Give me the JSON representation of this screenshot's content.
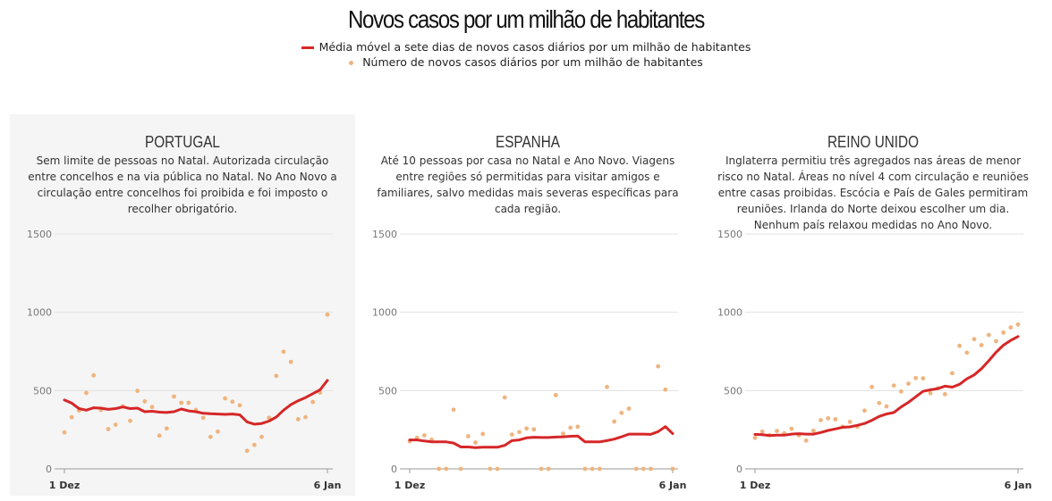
{
  "title": "Novos casos por um milhão de habitantes",
  "legend": {
    "line": "Média móvel a sete dias de novos casos diários por um milhão de habitantes",
    "dots": "Número de novos casos diários por um milhão de habitantes"
  },
  "colors": {
    "line": "#d62728",
    "dots": "#efb47e",
    "panel_highlight": "#f5f5f5"
  },
  "chart_data": [
    {
      "type": "line",
      "title": "PORTUGAL",
      "subtitle": "Sem limite de pessoas no Natal. Autorizada circulação entre concelhos e na via pública no Natal. No Ano Novo a circulação entre concelhos foi proibida e foi imposto o recolher obrigatório.",
      "x_ticks": [
        "1 Dez",
        "6 Jan"
      ],
      "y_ticks": [
        0,
        500,
        1000,
        1500
      ],
      "ylim": [
        0,
        1500
      ],
      "grid": true,
      "series": [
        {
          "name": "Média móvel a sete dias de novos casos diários por um milhão de habitantes",
          "kind": "line",
          "values": [
            440,
            420,
            385,
            375,
            390,
            388,
            380,
            385,
            395,
            385,
            388,
            365,
            368,
            362,
            360,
            365,
            382,
            370,
            365,
            355,
            352,
            350,
            348,
            350,
            345,
            300,
            285,
            290,
            305,
            330,
            375,
            410,
            435,
            455,
            480,
            505,
            565
          ]
        },
        {
          "name": "Número de novos casos diários por um milhão de habitantes",
          "kind": "scatter",
          "values": [
            233,
            330,
            372,
            485,
            597,
            376,
            254,
            282,
            400,
            307,
            498,
            431,
            395,
            212,
            258,
            462,
            422,
            422,
            376,
            326,
            204,
            238,
            450,
            429,
            406,
            115,
            153,
            204,
            326,
            594,
            748,
            683,
            317,
            330,
            427,
            487,
            985
          ]
        }
      ]
    },
    {
      "type": "line",
      "title": "ESPANHA",
      "subtitle": "Até 10 pessoas por casa no Natal e Ano Novo. Viagens entre regiões só permitidas para visitar amigos e familiares, salvo medidas mais severas específicas para cada região.",
      "x_ticks": [
        "1 Dez",
        "6 Jan"
      ],
      "y_ticks": [
        0,
        500,
        1000,
        1500
      ],
      "ylim": [
        0,
        1500
      ],
      "grid": true,
      "series": [
        {
          "name": "Média móvel a sete dias de novos casos diários por um milhão de habitantes",
          "kind": "line",
          "values": [
            185,
            185,
            178,
            172,
            172,
            172,
            165,
            140,
            140,
            135,
            138,
            138,
            138,
            150,
            180,
            185,
            198,
            202,
            200,
            200,
            203,
            205,
            208,
            210,
            172,
            172,
            172,
            180,
            190,
            205,
            222,
            222,
            222,
            220,
            238,
            270,
            225
          ]
        },
        {
          "name": "Número de novos casos diários por um milhão de habitantes",
          "kind": "scatter",
          "values": [
            176,
            198,
            214,
            187,
            0,
            0,
            378,
            0,
            208,
            168,
            223,
            0,
            0,
            456,
            219,
            235,
            258,
            252,
            0,
            0,
            471,
            225,
            263,
            269,
            0,
            0,
            0,
            523,
            302,
            357,
            385,
            0,
            0,
            0,
            655,
            506,
            0
          ]
        }
      ]
    },
    {
      "type": "line",
      "title": "REINO UNIDO",
      "subtitle": "Inglaterra permitiu três agregados nas áreas de menor risco no Natal. Áreas no nível 4 com circulação e reuniões entre casas proibidas. Escócia e País de Gales permitiram reuniões. Irlanda do Norte deixou escolher um dia. Nenhum país relaxou medidas no Ano Novo.",
      "x_ticks": [
        "1 Dez",
        "6 Jan"
      ],
      "y_ticks": [
        0,
        500,
        1000,
        1500
      ],
      "ylim": [
        0,
        1500
      ],
      "grid": true,
      "series": [
        {
          "name": "Média móvel a sete dias de novos casos diários por um milhão de habitantes",
          "kind": "line",
          "values": [
            220,
            218,
            213,
            215,
            215,
            222,
            225,
            222,
            222,
            232,
            245,
            255,
            265,
            268,
            278,
            290,
            310,
            335,
            350,
            360,
            395,
            425,
            460,
            495,
            505,
            512,
            528,
            522,
            540,
            575,
            600,
            640,
            690,
            745,
            790,
            820,
            845
          ]
        },
        {
          "name": "Número de novos casos diários por um milhão de habitantes",
          "kind": "scatter",
          "values": [
            198,
            238,
            216,
            242,
            227,
            256,
            214,
            181,
            244,
            311,
            323,
            317,
            269,
            300,
            269,
            372,
            523,
            420,
            399,
            532,
            494,
            544,
            580,
            578,
            483,
            515,
            477,
            611,
            786,
            742,
            828,
            790,
            855,
            815,
            870,
            903,
            922
          ]
        }
      ]
    }
  ]
}
